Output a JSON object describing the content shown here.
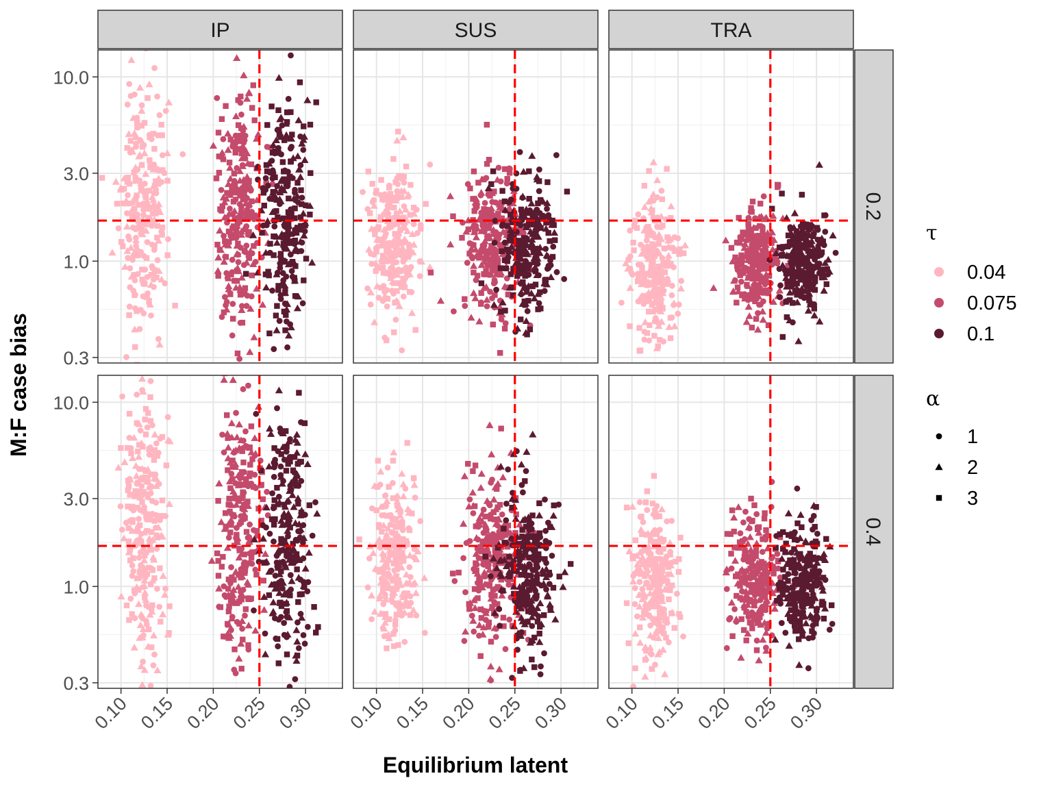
{
  "chart_data": {
    "type": "scatter",
    "title": "",
    "xlabel": "Equilibrium latent",
    "ylabel": "M:F case bias",
    "x_ticks": [
      "0.10",
      "0.15",
      "0.20",
      "0.25",
      "0.30"
    ],
    "y_ticks": [
      "0.3",
      "1.0",
      "3.0",
      "10.0"
    ],
    "xlim": [
      0.075,
      0.34
    ],
    "ylim": [
      0.28,
      14
    ],
    "y_scale": "log",
    "grid": true,
    "reference_lines": {
      "x": 0.25,
      "y": 1.66,
      "color": "#ff0000",
      "style": "dashed"
    },
    "facet_columns": [
      "IP",
      "SUS",
      "TRA"
    ],
    "facet_rows": [
      "0.2",
      "0.4"
    ],
    "legend": {
      "position": "right",
      "color": {
        "title": "τ",
        "entries": [
          {
            "label": "0.04",
            "color": "#ffb6c1"
          },
          {
            "label": "0.075",
            "color": "#c44b6c"
          },
          {
            "label": "0.1",
            "color": "#5a1a30"
          }
        ]
      },
      "shape": {
        "title": "α",
        "entries": [
          {
            "label": "1",
            "shape": "circle"
          },
          {
            "label": "2",
            "shape": "triangle"
          },
          {
            "label": "3",
            "shape": "square"
          }
        ]
      }
    },
    "clusters": [
      {
        "panel": "IP-0.2",
        "tau": "0.04",
        "x_mean": 0.125,
        "x_sd": 0.013,
        "y_median": 2.0,
        "log_sd": 0.36,
        "n": 260
      },
      {
        "panel": "IP-0.2",
        "tau": "0.075",
        "x_mean": 0.228,
        "x_sd": 0.012,
        "y_median": 1.9,
        "log_sd": 0.33,
        "n": 260
      },
      {
        "panel": "IP-0.2",
        "tau": "0.1",
        "x_mean": 0.278,
        "x_sd": 0.013,
        "y_median": 1.7,
        "log_sd": 0.34,
        "n": 260
      },
      {
        "panel": "SUS-0.2",
        "tau": "0.04",
        "x_mean": 0.12,
        "x_sd": 0.013,
        "y_median": 1.3,
        "log_sd": 0.22,
        "n": 260
      },
      {
        "panel": "SUS-0.2",
        "tau": "0.075",
        "x_mean": 0.225,
        "x_sd": 0.016,
        "y_median": 1.3,
        "log_sd": 0.2,
        "n": 260
      },
      {
        "panel": "SUS-0.2",
        "tau": "0.1",
        "x_mean": 0.265,
        "x_sd": 0.016,
        "y_median": 1.2,
        "log_sd": 0.2,
        "n": 260
      },
      {
        "panel": "TRA-0.2",
        "tau": "0.04",
        "x_mean": 0.125,
        "x_sd": 0.012,
        "y_median": 0.95,
        "log_sd": 0.2,
        "n": 260
      },
      {
        "panel": "TRA-0.2",
        "tau": "0.075",
        "x_mean": 0.235,
        "x_sd": 0.012,
        "y_median": 1.0,
        "log_sd": 0.15,
        "n": 260
      },
      {
        "panel": "TRA-0.2",
        "tau": "0.1",
        "x_mean": 0.285,
        "x_sd": 0.013,
        "y_median": 1.0,
        "log_sd": 0.14,
        "n": 260
      },
      {
        "panel": "IP-0.4",
        "tau": "0.04",
        "x_mean": 0.125,
        "x_sd": 0.012,
        "y_median": 2.0,
        "log_sd": 0.36,
        "n": 260
      },
      {
        "panel": "IP-0.4",
        "tau": "0.075",
        "x_mean": 0.228,
        "x_sd": 0.012,
        "y_median": 2.0,
        "log_sd": 0.35,
        "n": 260
      },
      {
        "panel": "IP-0.4",
        "tau": "0.1",
        "x_mean": 0.28,
        "x_sd": 0.013,
        "y_median": 1.9,
        "log_sd": 0.35,
        "n": 260
      },
      {
        "panel": "SUS-0.4",
        "tau": "0.04",
        "x_mean": 0.12,
        "x_sd": 0.012,
        "y_median": 1.4,
        "log_sd": 0.23,
        "n": 260
      },
      {
        "panel": "SUS-0.4",
        "tau": "0.075",
        "x_mean": 0.225,
        "x_sd": 0.016,
        "y_median": 1.4,
        "log_sd": 0.22,
        "n": 260
      },
      {
        "panel": "SUS-0.4",
        "tau": "0.1",
        "x_mean": 0.265,
        "x_sd": 0.016,
        "y_median": 1.25,
        "log_sd": 0.22,
        "n": 260
      },
      {
        "panel": "TRA-0.4",
        "tau": "0.04",
        "x_mean": 0.125,
        "x_sd": 0.012,
        "y_median": 1.1,
        "log_sd": 0.22,
        "n": 260
      },
      {
        "panel": "TRA-0.4",
        "tau": "0.075",
        "x_mean": 0.235,
        "x_sd": 0.013,
        "y_median": 1.1,
        "log_sd": 0.17,
        "n": 260
      },
      {
        "panel": "TRA-0.4",
        "tau": "0.1",
        "x_mean": 0.285,
        "x_sd": 0.013,
        "y_median": 1.05,
        "log_sd": 0.16,
        "n": 260
      }
    ]
  }
}
